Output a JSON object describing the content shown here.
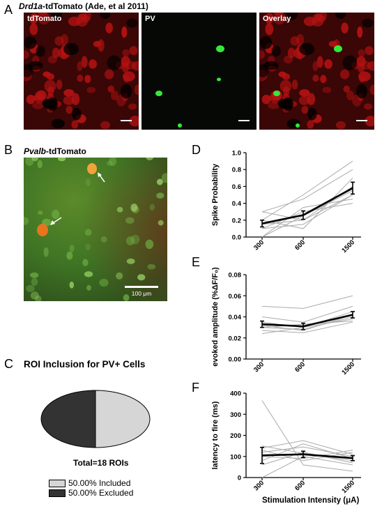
{
  "panel_letters": {
    "a": "A",
    "b": "B",
    "c": "C",
    "d": "D",
    "e": "E",
    "f": "F"
  },
  "panel_a": {
    "title_italic": "Drd1a",
    "title_rest": "-tdTomato (Ade, et al 2011)",
    "images": [
      {
        "label": "tdTomato",
        "channel": "red",
        "color": "#c41616"
      },
      {
        "label": "PV",
        "channel": "green",
        "color": "#2ee03a"
      },
      {
        "label": "Overlay",
        "channel": "overlay",
        "color": "#c41616"
      }
    ]
  },
  "panel_b": {
    "title_italic": "Pvalb",
    "title_rest": "-tdTomato",
    "scale_label": "100 μm"
  },
  "panel_c": {
    "title": "ROI Inclusion for  PV+ Cells",
    "total": "Total=18 ROIs",
    "legend": [
      {
        "label": "50.00%  Included",
        "color": "#d6d6d6"
      },
      {
        "label": "50.00%  Excluded",
        "color": "#333333"
      }
    ]
  },
  "x_axis_title": "Stimulation Intensity (μA)",
  "chart_data": [
    {
      "panel": "D",
      "type": "line",
      "ylabel": "Spike Probability",
      "x": [
        "300",
        "600",
        "1500"
      ],
      "ylim": [
        0,
        1.0
      ],
      "yticks": [
        "0.0",
        "0.2",
        "0.4",
        "0.6",
        "0.8",
        "1.0"
      ],
      "mean": {
        "values": [
          0.16,
          0.26,
          0.58
        ],
        "err": [
          0.04,
          0.05,
          0.07
        ]
      },
      "individual": [
        [
          0.3,
          0.2,
          0.5
        ],
        [
          0.2,
          0.5,
          0.9
        ],
        [
          0.1,
          0.3,
          0.4
        ],
        [
          0.3,
          0.45,
          0.8
        ],
        [
          0.0,
          0.25,
          0.55
        ],
        [
          0.1,
          0.15,
          0.5
        ],
        [
          0.2,
          0.1,
          0.7
        ],
        [
          0.0,
          0.35,
          0.45
        ],
        [
          0.15,
          0.2,
          0.6
        ]
      ]
    },
    {
      "panel": "E",
      "type": "line",
      "ylabel": "evoked amplitude (%ΔF/F₀)",
      "x": [
        "300",
        "600",
        "1500"
      ],
      "ylim": [
        0,
        0.08
      ],
      "yticks": [
        "0.00",
        "0.02",
        "0.04",
        "0.06",
        "0.08"
      ],
      "mean": {
        "values": [
          0.033,
          0.031,
          0.042
        ],
        "err": [
          0.003,
          0.003,
          0.003
        ]
      },
      "individual": [
        [
          0.05,
          0.048,
          0.06
        ],
        [
          0.04,
          0.035,
          0.05
        ],
        [
          0.035,
          0.03,
          0.045
        ],
        [
          0.03,
          0.028,
          0.04
        ],
        [
          0.027,
          0.025,
          0.035
        ],
        [
          0.024,
          0.03,
          0.038
        ],
        [
          0.032,
          0.027,
          0.042
        ],
        [
          0.03,
          0.033,
          0.036
        ]
      ]
    },
    {
      "panel": "F",
      "type": "line",
      "ylabel": "latency to fire (ms)",
      "x": [
        "300",
        "600",
        "1500"
      ],
      "ylim": [
        0,
        400
      ],
      "yticks": [
        "0",
        "100",
        "200",
        "300",
        "400"
      ],
      "mean": {
        "values": [
          105,
          110,
          92
        ],
        "err": [
          38,
          15,
          12
        ]
      },
      "individual": [
        [
          365,
          60,
          30
        ],
        [
          150,
          115,
          80
        ],
        [
          140,
          175,
          110
        ],
        [
          130,
          80,
          120
        ],
        [
          120,
          145,
          100
        ],
        [
          100,
          90,
          130
        ],
        [
          80,
          160,
          90
        ],
        [
          60,
          120,
          70
        ],
        [
          0,
          100,
          60
        ]
      ]
    }
  ]
}
